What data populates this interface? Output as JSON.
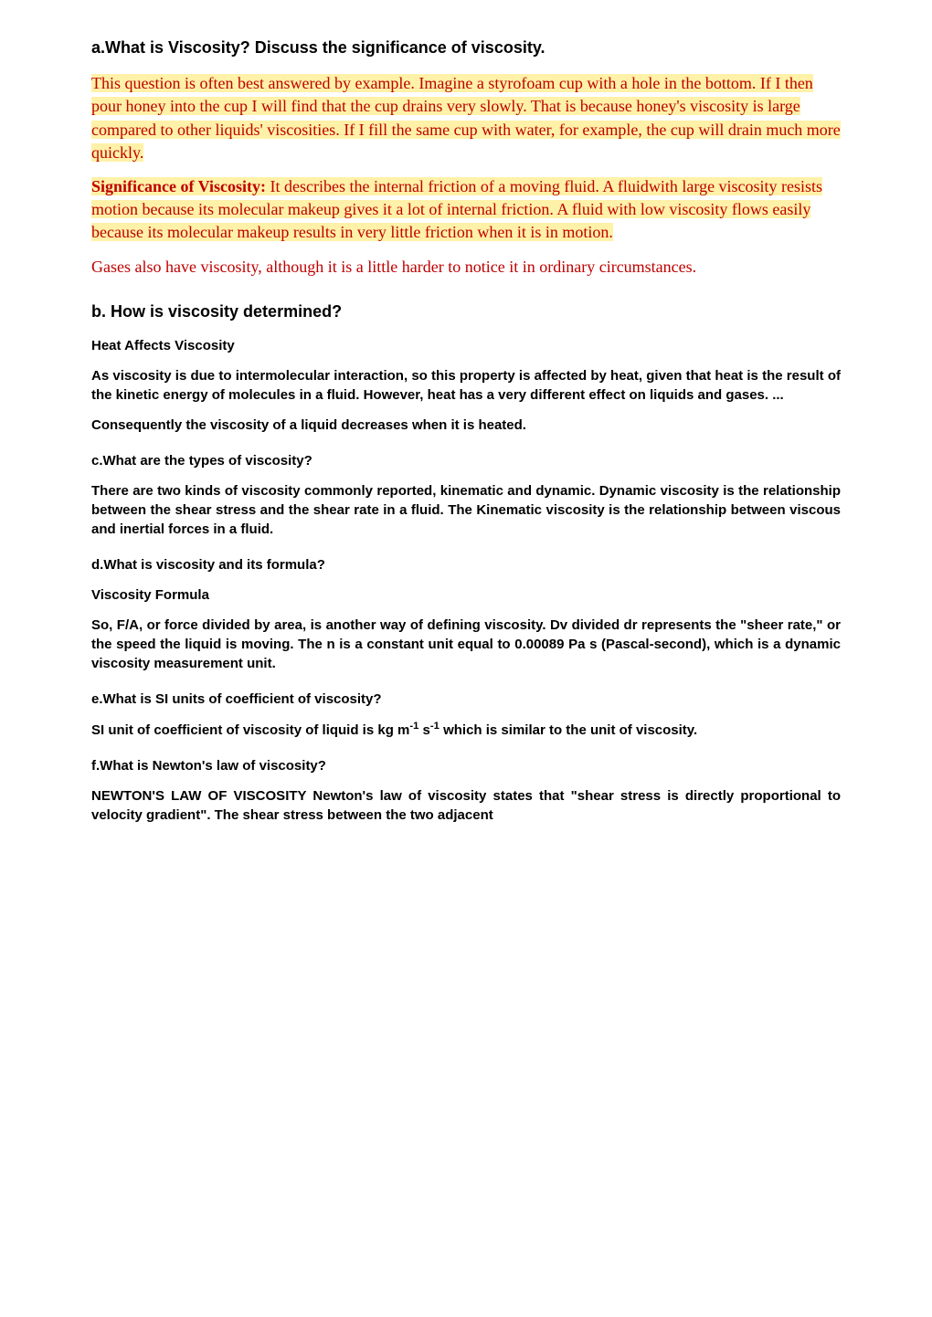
{
  "q_a": {
    "heading": "a.What is Viscosity? Discuss the significance of viscosity.",
    "p1": "This question is often best answered by example. Imagine a styrofoam cup with a hole in the bottom. If I then pour honey into the cup I will find that the cup drains very slowly. That is because honey's viscosity is large compared to other liquids' viscosities. If I fill the same cup with water, for example, the cup will drain much more quickly.",
    "p2_lead": "Significance of Viscosity:",
    "p2_rest": " It describes the internal friction of a moving fluid. A fluidwith large viscosity resists motion because its molecular makeup gives it a lot of internal friction. A fluid with low viscosity flows easily because its molecular makeup results in very little friction when it is in motion.",
    "p3": "Gases also have viscosity, although it is a little harder to notice it in ordinary circumstances."
  },
  "q_b": {
    "heading": "b. How is viscosity determined?",
    "sub": "Heat Affects Viscosity",
    "p1": "As viscosity is due to intermolecular interaction, so this property is affected by heat, given that heat is the result of the kinetic energy of molecules in a fluid. However, heat has a very different effect on liquids and gases. ...",
    "p2": "Consequently the viscosity of a liquid decreases when it is heated."
  },
  "q_c": {
    "heading": "c.What are the types of viscosity?",
    "p1": "There are two kinds of viscosity commonly reported, kinematic and dynamic. Dynamic viscosity is the relationship between the shear stress and the shear rate in a fluid. The Kinematic viscosity is the relationship between viscous and inertial forces in a fluid."
  },
  "q_d": {
    "heading": "d.What is viscosity and its formula?",
    "sub": "Viscosity Formula",
    "p1": "So, F/A, or force divided by area, is another way of defining viscosity. Dv divided dr represents the \"sheer rate,\" or the speed the liquid is moving. The n is a constant unit equal to 0.00089 Pa s (Pascal-second), which is a dynamic viscosity measurement unit."
  },
  "q_e": {
    "heading": "e.What is SI units of coefficient of viscosity?",
    "p1_pre": "SI unit of coefficient of viscosity of liquid is kg m",
    "p1_sup1": "-1",
    "p1_mid": " s",
    "p1_sup2": "-1",
    "p1_post": " which is similar to the unit of viscosity."
  },
  "q_f": {
    "heading": "f.What is Newton's law of viscosity?",
    "p1": "NEWTON'S LAW OF VISCOSITY Newton's law of viscosity states that \"shear stress is directly proportional to velocity gradient\". The shear stress between the two adjacent"
  }
}
